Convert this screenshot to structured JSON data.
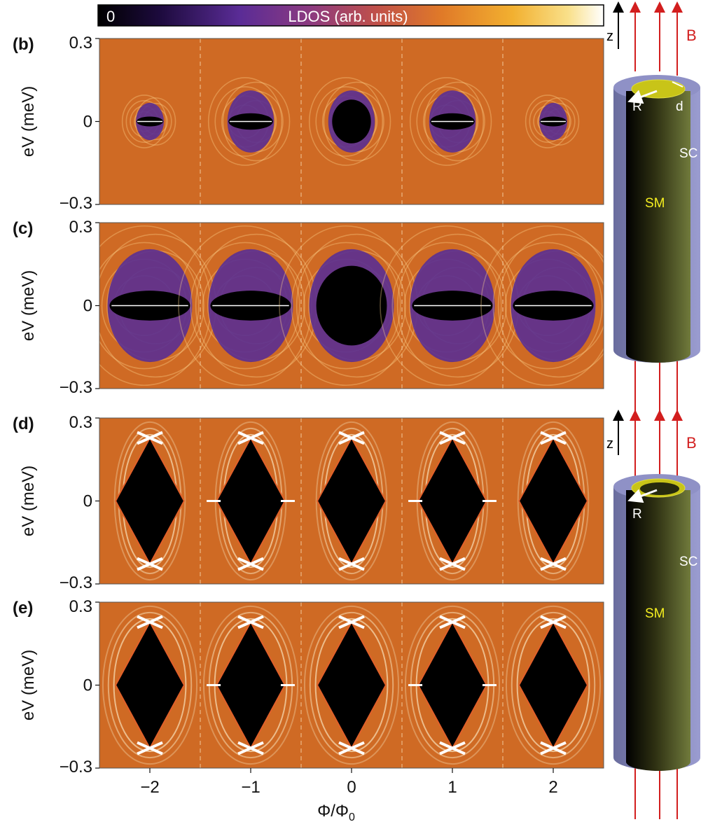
{
  "figure": {
    "colorbar": {
      "min_label": "0",
      "title": "LDOS (arb. units)",
      "colors": [
        "#000000",
        "#1a0a3a",
        "#4b2a8a",
        "#7a3a8a",
        "#b04a5a",
        "#d8702a",
        "#f0a22a",
        "#f8d468",
        "#ffffff"
      ]
    },
    "panels": [
      {
        "label": "(b)",
        "ylabel": "eV (meV)",
        "yticks": [
          "0.3",
          "0",
          "−0.3"
        ],
        "lobe": "round",
        "intensity": 0.55
      },
      {
        "label": "(c)",
        "ylabel": "eV (meV)",
        "yticks": [
          "0.3",
          "0",
          "−0.3"
        ],
        "lobe": "round",
        "intensity": 1.0
      },
      {
        "label": "(d)",
        "ylabel": "eV (meV)",
        "yticks": [
          "0.3",
          "0",
          "−0.3"
        ],
        "lobe": "diamond",
        "intensity": 0.75
      },
      {
        "label": "(e)",
        "ylabel": "eV (meV)",
        "yticks": [
          "0.3",
          "0",
          "−0.3"
        ],
        "lobe": "diamond",
        "intensity": 1.0
      }
    ],
    "xticks": [
      "−2",
      "−1",
      "0",
      "1",
      "2"
    ],
    "xlabel": "Φ/Φ",
    "xlabel_sub": "0",
    "schematics": [
      {
        "axis": "z",
        "field": "B",
        "radius": "R",
        "shell": "d",
        "superconductor": "SC",
        "semiconductor": "SM",
        "core": "solid"
      },
      {
        "axis": "z",
        "field": "B",
        "radius": "R",
        "superconductor": "SC",
        "semiconductor": "SM",
        "core": "hollow"
      }
    ]
  }
}
